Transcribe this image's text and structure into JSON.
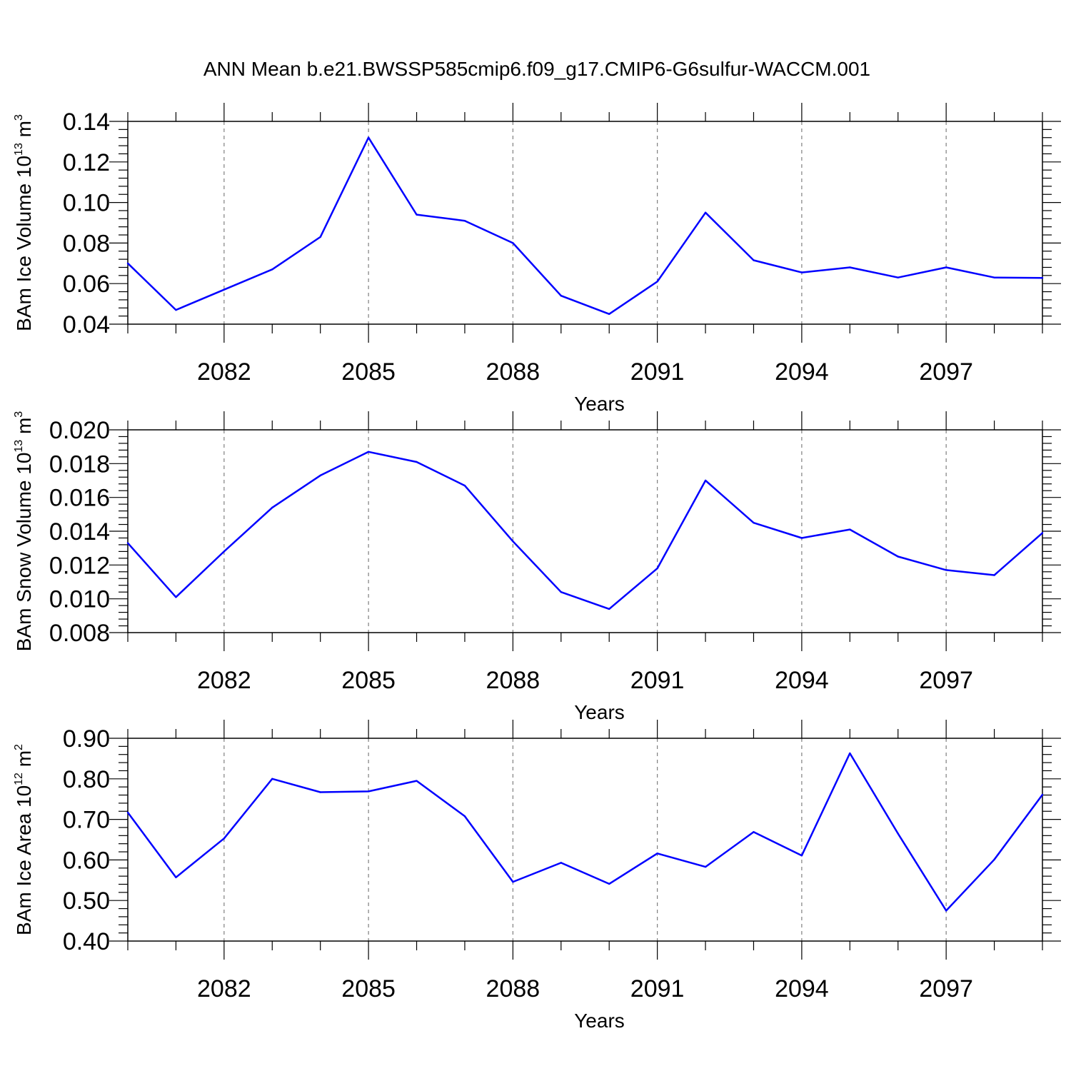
{
  "title": "ANN Mean b.e21.BWSSP585cmip6.f09_g17.CMIP6-G6sulfur-WACCM.001",
  "colors": {
    "line": "#0000ff",
    "axis": "#000000",
    "grid": "#7f7f7f"
  },
  "chart_data": [
    {
      "type": "line",
      "xlabel": "Years",
      "ylabel": {
        "text": "BAm Ice Volume 10",
        "sup": "13",
        "unit": " m",
        "unit_sup": "3"
      },
      "xlim": [
        2080,
        2099
      ],
      "ylim": [
        0.04,
        0.14
      ],
      "x_ticks": [
        "2082",
        "2085",
        "2088",
        "2091",
        "2094",
        "2097"
      ],
      "y_ticks": [
        "0.04",
        "0.06",
        "0.08",
        "0.10",
        "0.12",
        "0.14"
      ],
      "grid": "vertical dashed at major x ticks",
      "x": [
        2080,
        2081,
        2082,
        2083,
        2084,
        2085,
        2086,
        2087,
        2088,
        2089,
        2090,
        2091,
        2092,
        2093,
        2094,
        2095,
        2096,
        2097,
        2098,
        2099
      ],
      "series": [
        {
          "values": [
            0.07,
            0.047,
            0.057,
            0.067,
            0.083,
            0.132,
            0.094,
            0.091,
            0.08,
            0.054,
            0.045,
            0.061,
            0.095,
            0.0715,
            0.0655,
            0.068,
            0.063,
            0.068,
            0.063,
            0.0628
          ]
        }
      ]
    },
    {
      "type": "line",
      "xlabel": "Years",
      "ylabel": {
        "text": "BAm Snow Volume 10",
        "sup": "13",
        "unit": " m",
        "unit_sup": "3"
      },
      "xlim": [
        2080,
        2099
      ],
      "ylim": [
        0.008,
        0.02
      ],
      "x_ticks": [
        "2082",
        "2085",
        "2088",
        "2091",
        "2094",
        "2097"
      ],
      "y_ticks": [
        "0.008",
        "0.010",
        "0.012",
        "0.014",
        "0.016",
        "0.018",
        "0.020"
      ],
      "grid": "vertical dashed at major x ticks",
      "x": [
        2080,
        2081,
        2082,
        2083,
        2084,
        2085,
        2086,
        2087,
        2088,
        2089,
        2090,
        2091,
        2092,
        2093,
        2094,
        2095,
        2096,
        2097,
        2098,
        2099
      ],
      "series": [
        {
          "values": [
            0.0133,
            0.0101,
            0.0128,
            0.0154,
            0.0173,
            0.0187,
            0.0181,
            0.0167,
            0.0134,
            0.0104,
            0.0094,
            0.0118,
            0.017,
            0.0145,
            0.0136,
            0.0141,
            0.0125,
            0.0117,
            0.0114,
            0.0139
          ]
        }
      ]
    },
    {
      "type": "line",
      "xlabel": "Years",
      "ylabel": {
        "text": "BAm Ice Area 10",
        "sup": "12",
        "unit": " m",
        "unit_sup": "2"
      },
      "xlim": [
        2080,
        2099
      ],
      "ylim": [
        0.4,
        0.9
      ],
      "x_ticks": [
        "2082",
        "2085",
        "2088",
        "2091",
        "2094",
        "2097"
      ],
      "y_ticks": [
        "0.40",
        "0.50",
        "0.60",
        "0.70",
        "0.80",
        "0.90"
      ],
      "grid": "vertical dashed at major x ticks",
      "x": [
        2080,
        2081,
        2082,
        2083,
        2084,
        2085,
        2086,
        2087,
        2088,
        2089,
        2090,
        2091,
        2092,
        2093,
        2094,
        2095,
        2096,
        2097,
        2098,
        2099
      ],
      "series": [
        {
          "values": [
            0.717,
            0.557,
            0.653,
            0.8,
            0.767,
            0.769,
            0.795,
            0.708,
            0.546,
            0.593,
            0.541,
            0.616,
            0.583,
            0.669,
            0.611,
            0.863,
            0.665,
            0.475,
            0.601,
            0.761
          ]
        }
      ]
    }
  ]
}
